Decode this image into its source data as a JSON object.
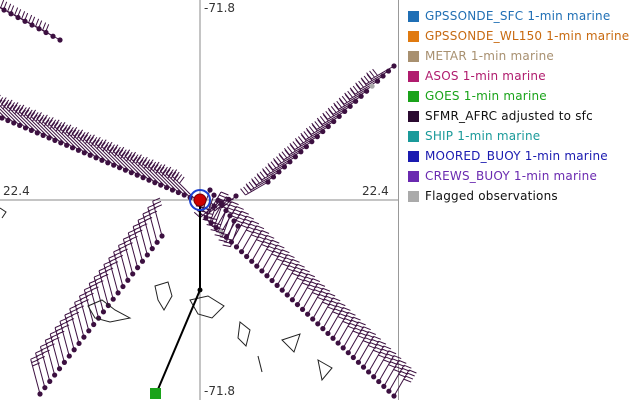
{
  "map": {
    "lon_top": "-71.8",
    "lon_bottom": "-71.8",
    "lat_left": "22.4",
    "lat_right": "22.4",
    "barb_color": "#3c1040",
    "center_marker_color": "#cc0000",
    "center_ring_color": "#1a3fd0",
    "track_color": "#000000",
    "flagged_color": "#aaaaaa",
    "end_marker_color": "#1aa31a"
  },
  "legend": {
    "items": [
      {
        "label": "GPSSONDE_SFC 1-min marine",
        "color": "#1f6fb5",
        "text_color": "#1f6fb5"
      },
      {
        "label": "GPSSONDE_WL150 1-min marine",
        "color": "#e07a10",
        "text_color": "#c86a10"
      },
      {
        "label": "METAR 1-min marine",
        "color": "#a89070",
        "text_color": "#a89070"
      },
      {
        "label": "ASOS 1-min marine",
        "color": "#b01c6e",
        "text_color": "#b01c6e"
      },
      {
        "label": "GOES 1-min marine",
        "color": "#1aa31a",
        "text_color": "#1aa31a"
      },
      {
        "label": "SFMR_AFRC adjusted to sfc",
        "color": "#2a0a30",
        "text_color": "#111111"
      },
      {
        "label": "SHIP 1-min marine",
        "color": "#1a9a9a",
        "text_color": "#1a9a9a"
      },
      {
        "label": "MOORED_BUOY 1-min marine",
        "color": "#1a1ab0",
        "text_color": "#1a1ab0"
      },
      {
        "label": "CREWS_BUOY 1-min marine",
        "color": "#6a2ab0",
        "text_color": "#6a2ab0"
      },
      {
        "label": "Flagged observations",
        "color": "#aaaaaa",
        "text_color": "#111111"
      }
    ]
  }
}
